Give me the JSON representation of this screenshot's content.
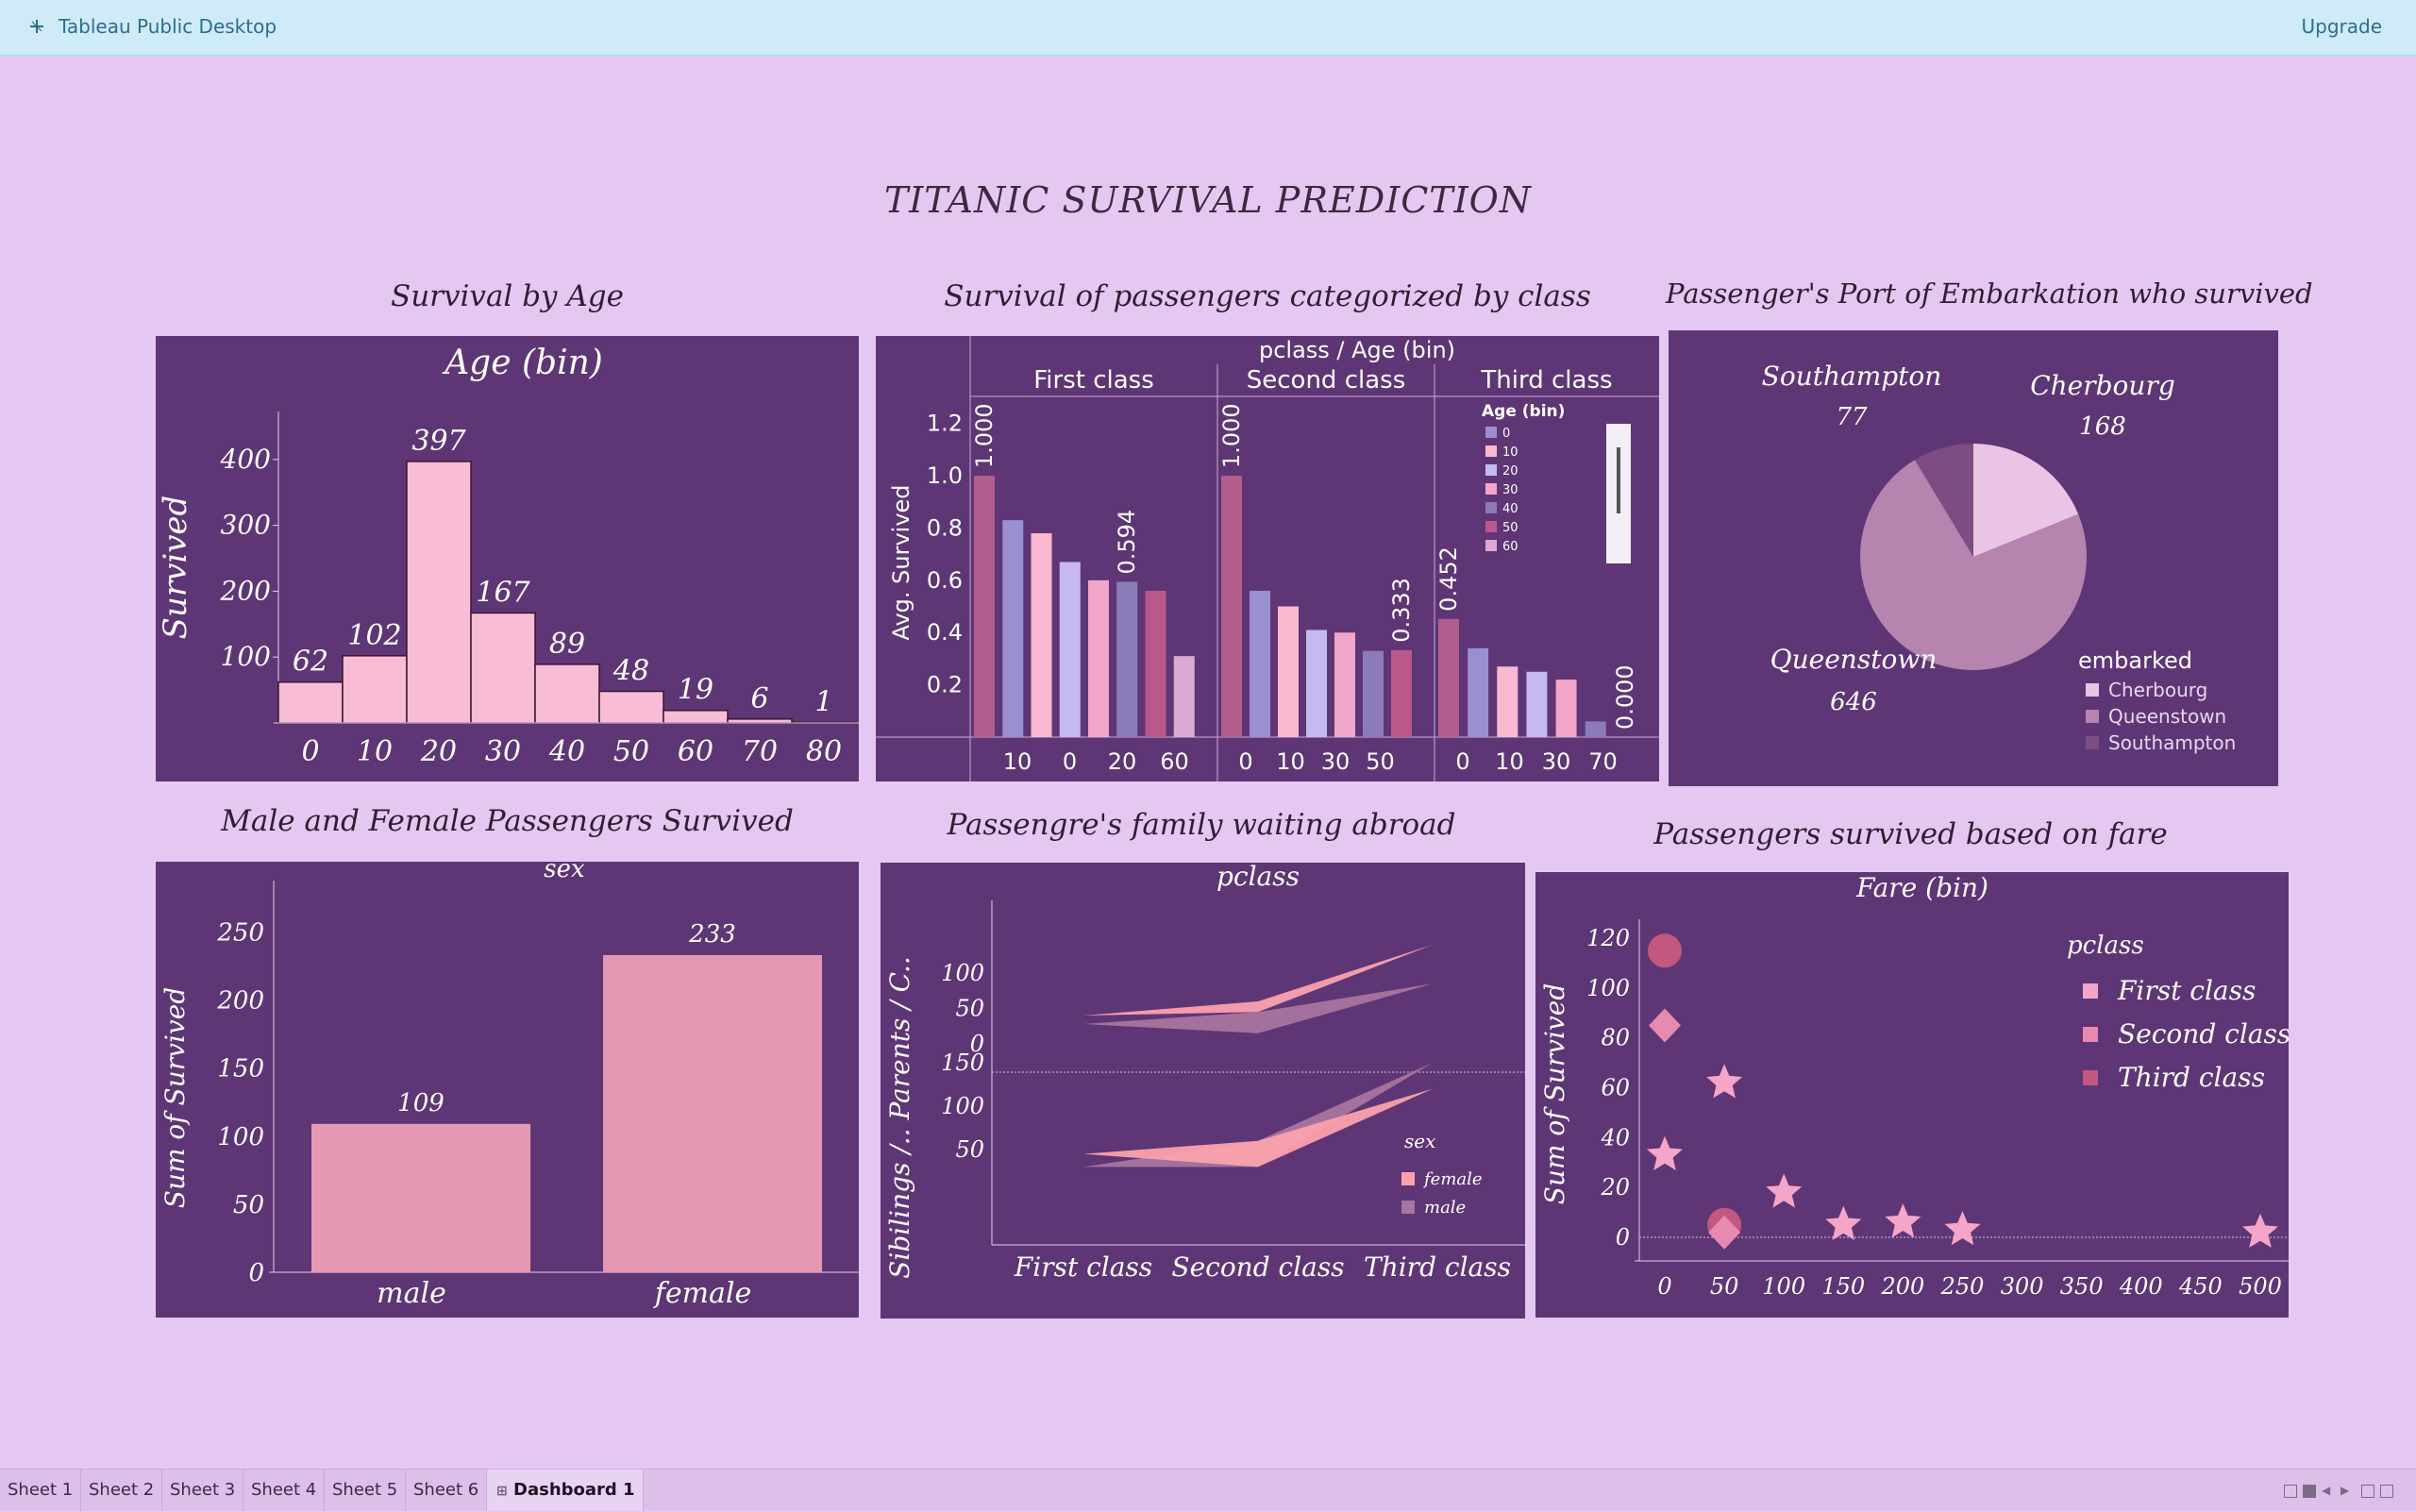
{
  "app": {
    "title": "Tableau Public Desktop",
    "upgrade_label": "Upgrade",
    "logo_icon": "tableau-logo-icon"
  },
  "dashboard": {
    "title": "TITANIC SURVIVAL PREDICTION"
  },
  "colors": {
    "panel_bg": "#5e3675",
    "page_bg": "#e5c8f2",
    "bar_pink": "#f8bcd7",
    "sex_bar": "#e598b4"
  },
  "tabs": [
    {
      "label": "Sheet 1",
      "active": false
    },
    {
      "label": "Sheet 2",
      "active": false
    },
    {
      "label": "Sheet 3",
      "active": false
    },
    {
      "label": "Sheet 4",
      "active": false
    },
    {
      "label": "Sheet 5",
      "active": false
    },
    {
      "label": "Sheet 6",
      "active": false
    },
    {
      "label": "Dashboard 1",
      "active": true
    }
  ],
  "chart_data": [
    {
      "id": "age",
      "type": "bar",
      "title": "Survival by Age",
      "header": "Age (bin)",
      "ylabel": "Survived",
      "categories": [
        "0",
        "10",
        "20",
        "30",
        "40",
        "50",
        "60",
        "70",
        "80"
      ],
      "values": [
        62,
        102,
        397,
        167,
        89,
        48,
        19,
        6,
        1
      ],
      "y_ticks": [
        100,
        200,
        300,
        400
      ],
      "ylim": [
        0,
        480
      ]
    },
    {
      "id": "class",
      "type": "bar",
      "title": "Survival of passengers categorized by class",
      "header": "pclass  /  Age (bin)",
      "ylabel": "Avg. Survived",
      "y_ticks": [
        "0.2",
        "0.4",
        "0.6",
        "0.8",
        "1.0",
        "1.2"
      ],
      "ylim": [
        0,
        1.3
      ],
      "groups": [
        {
          "name": "First class",
          "x_ticks": [
            "10",
            "0",
            "20",
            "60"
          ],
          "values": [
            1.0,
            0.83,
            0.78,
            0.67,
            0.6,
            0.594,
            0.56,
            0.31
          ],
          "labels": [
            "1.000",
            "",
            "",
            "",
            "",
            "0.594",
            "",
            ""
          ]
        },
        {
          "name": "Second class",
          "x_ticks": [
            "0",
            "10",
            "30",
            "50"
          ],
          "values": [
            1.0,
            0.56,
            0.5,
            0.41,
            0.4,
            0.33,
            0.333
          ],
          "labels": [
            "1.000",
            "",
            "",
            "",
            "",
            "",
            "0.333"
          ]
        },
        {
          "name": "Third class",
          "x_ticks": [
            "0",
            "10",
            "30",
            "70"
          ],
          "values": [
            0.452,
            0.34,
            0.27,
            0.25,
            0.22,
            0.06,
            0.0
          ],
          "labels": [
            "0.452",
            "",
            "",
            "",
            "",
            "",
            "0.000"
          ]
        }
      ],
      "legend": {
        "title": "Age (bin)",
        "items": [
          "0",
          "10",
          "20",
          "30",
          "40",
          "50",
          "60"
        ]
      }
    },
    {
      "id": "port",
      "type": "pie",
      "title": "Passenger's Port of Embarkation who survived",
      "slices": [
        {
          "name": "Cherbourg",
          "value": 168
        },
        {
          "name": "Queenstown",
          "value": 646
        },
        {
          "name": "Southampton",
          "value": 77
        }
      ],
      "legend": {
        "title": "embarked",
        "items": [
          "Cherbourg",
          "Queenstown",
          "Southampton"
        ]
      }
    },
    {
      "id": "sex",
      "type": "bar",
      "title": "Male and Female Passengers Survived",
      "header": "sex",
      "ylabel": "Sum of Survived",
      "categories": [
        "male",
        "female"
      ],
      "values": [
        109,
        233
      ],
      "y_ticks": [
        0,
        50,
        100,
        150,
        200,
        250
      ],
      "ylim": [
        0,
        260
      ]
    },
    {
      "id": "family",
      "type": "area",
      "title": "Passengre's family waiting abroad",
      "header": "pclass",
      "ylabel": "Sibilings /.. Parents / C..",
      "categories": [
        "First class",
        "Second class",
        "Third class"
      ],
      "top_pane": {
        "y_ticks": [
          0,
          50,
          100
        ],
        "series": [
          {
            "name": "female",
            "lower": [
              40,
              45,
              140
            ],
            "upper": [
              40,
              60,
              140
            ]
          },
          {
            "name": "male",
            "lower": [
              28,
              15,
              85
            ],
            "upper": [
              28,
              45,
              85
            ]
          }
        ]
      },
      "bottom_pane": {
        "y_ticks": [
          50,
          100,
          150
        ],
        "series": [
          {
            "name": "male",
            "lower": [
              30,
              30,
              150
            ],
            "upper": [
              30,
              60,
              150
            ]
          },
          {
            "name": "female",
            "lower": [
              45,
              30,
              120
            ],
            "upper": [
              45,
              60,
              120
            ]
          }
        ]
      },
      "legend": {
        "title": "sex",
        "items": [
          "female",
          "male"
        ]
      }
    },
    {
      "id": "fare",
      "type": "scatter",
      "title": "Passengers survived  based on fare",
      "header": "Fare (bin)",
      "ylabel": "Sum of Survived",
      "x_ticks": [
        0,
        50,
        100,
        150,
        200,
        250,
        300,
        350,
        400,
        450,
        500
      ],
      "y_ticks": [
        0,
        20,
        40,
        60,
        80,
        100,
        120
      ],
      "xlim": [
        -20,
        520
      ],
      "ylim": [
        -12,
        130
      ],
      "series": [
        {
          "name": "Third class",
          "shape": "circle",
          "points": [
            [
              0,
              115
            ],
            [
              50,
              5
            ]
          ]
        },
        {
          "name": "Second class",
          "shape": "diamond",
          "points": [
            [
              0,
              85
            ],
            [
              50,
              2
            ]
          ]
        },
        {
          "name": "First class",
          "shape": "star",
          "points": [
            [
              0,
              33
            ],
            [
              50,
              62
            ],
            [
              100,
              18
            ],
            [
              150,
              5
            ],
            [
              200,
              6
            ],
            [
              250,
              3
            ],
            [
              500,
              2
            ]
          ]
        }
      ],
      "legend": {
        "title": "pclass",
        "items": [
          "First class",
          "Second class",
          "Third class"
        ]
      }
    }
  ]
}
